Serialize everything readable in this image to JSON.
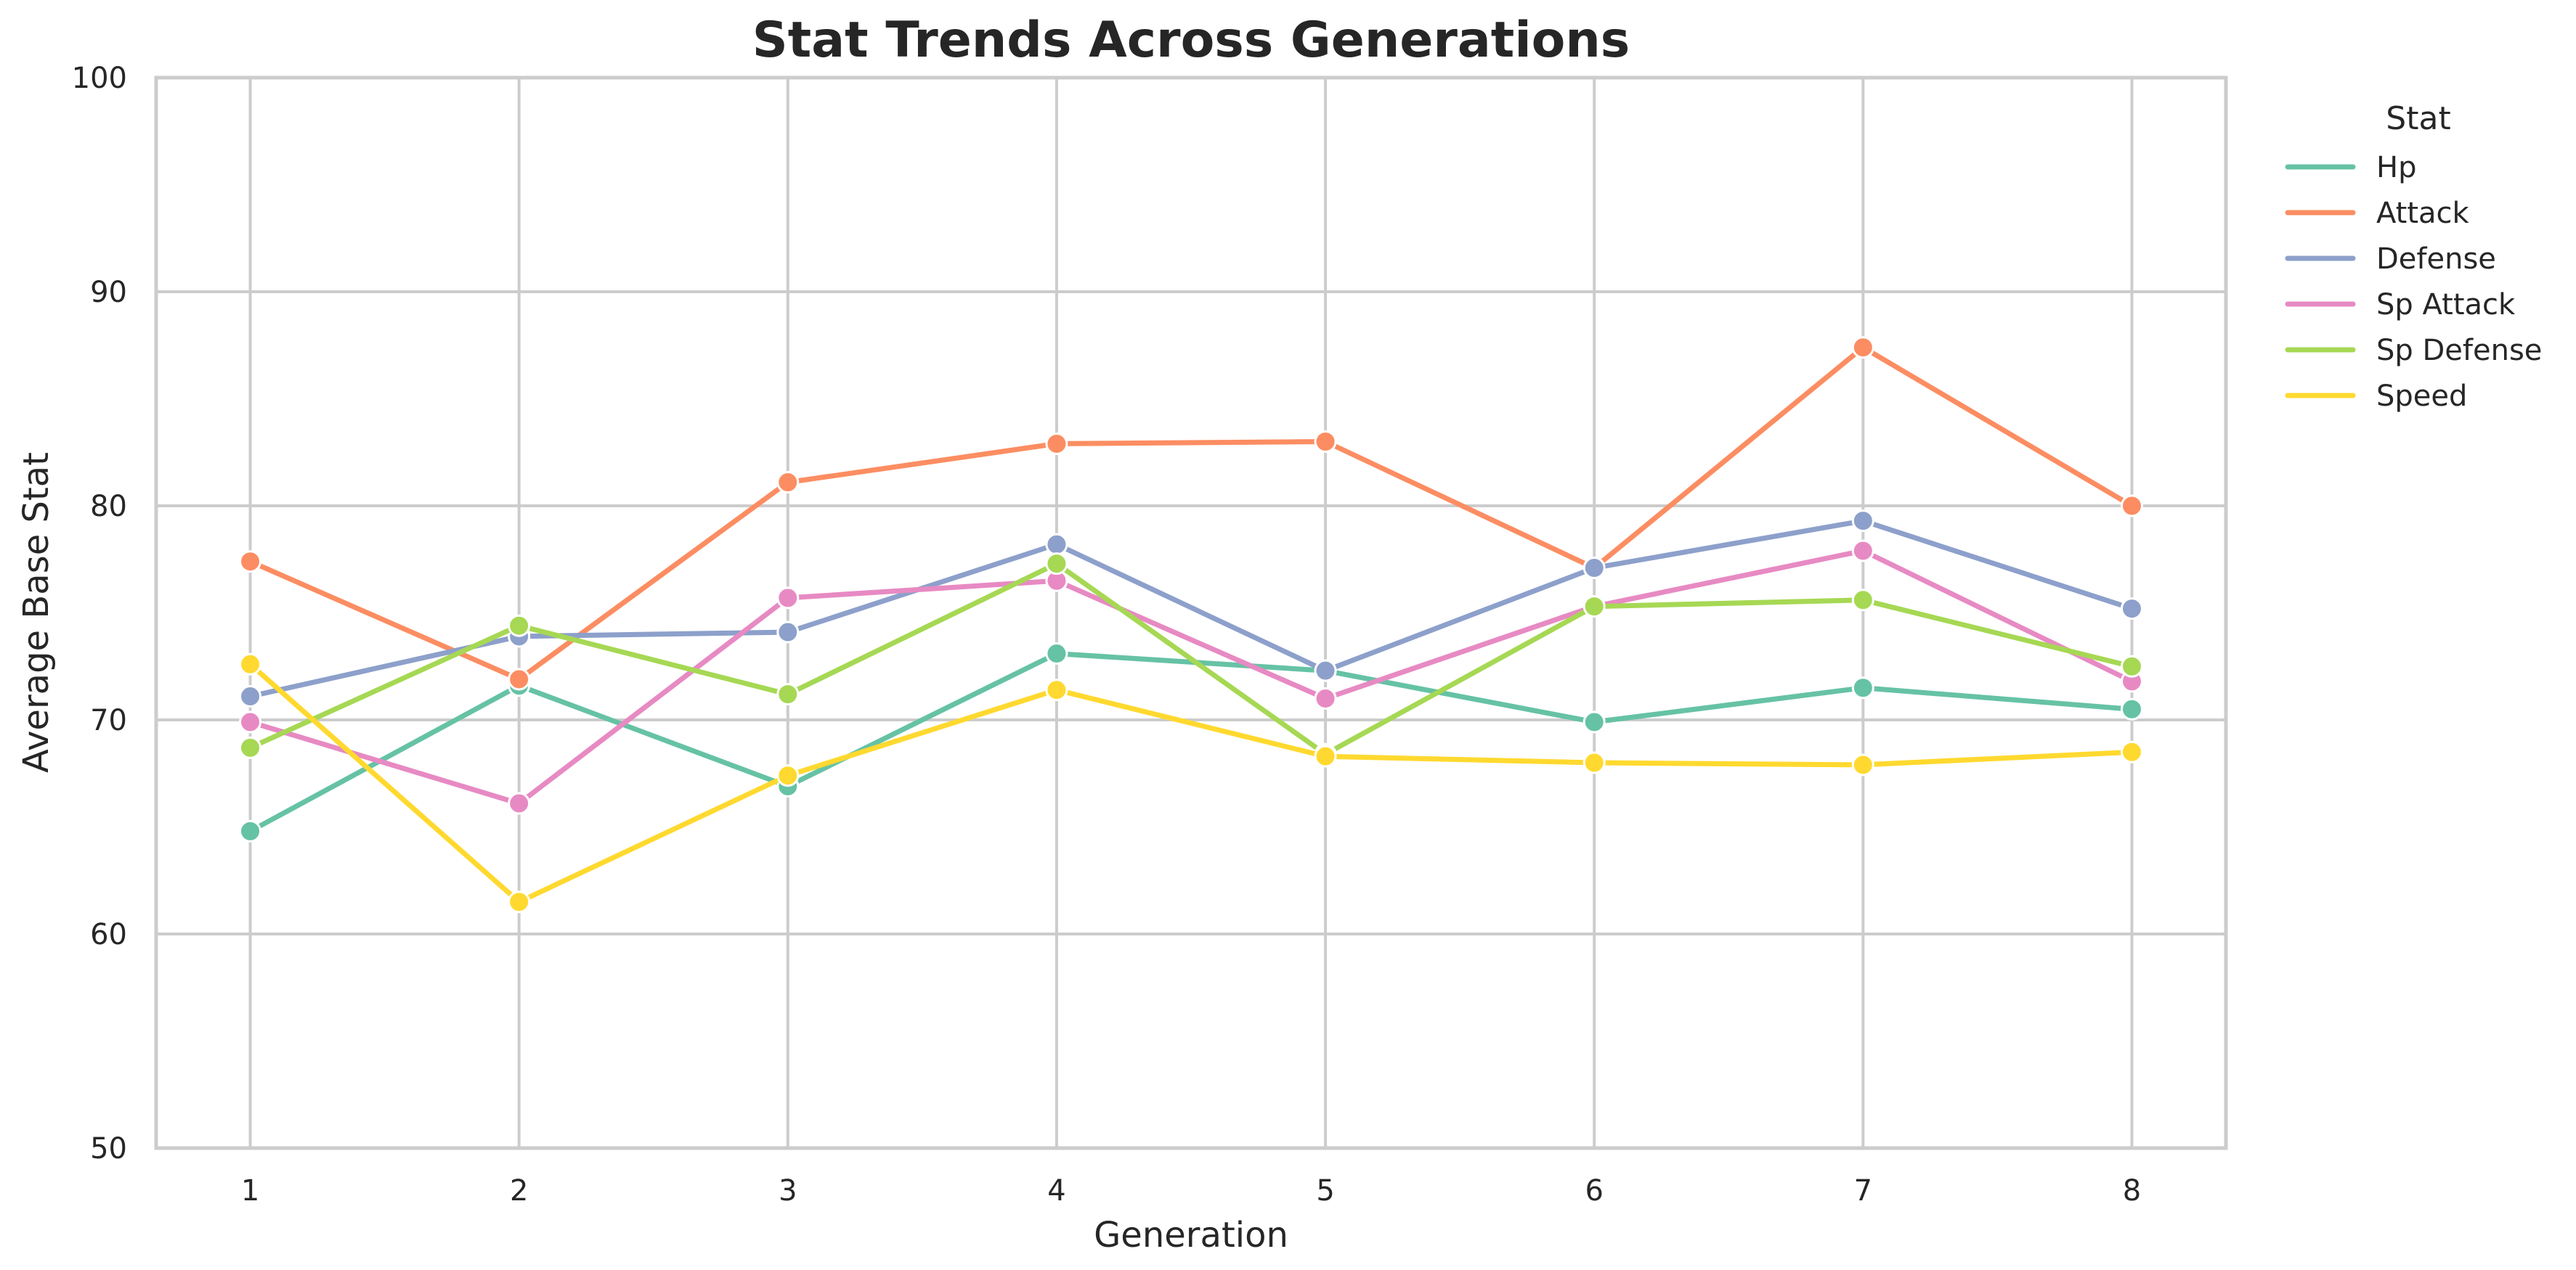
{
  "chart_data": {
    "type": "line",
    "title": "Stat Trends Across Generations",
    "xlabel": "Generation",
    "ylabel": "Average Base Stat",
    "x": [
      1,
      2,
      3,
      4,
      5,
      6,
      7,
      8
    ],
    "x_tick_labels": [
      "1",
      "2",
      "3",
      "4",
      "5",
      "6",
      "7",
      "8"
    ],
    "ylim": [
      50,
      100
    ],
    "y_ticks": [
      50,
      60,
      70,
      80,
      90,
      100
    ],
    "y_tick_labels": [
      "50",
      "60",
      "70",
      "80",
      "90",
      "100"
    ],
    "grid": true,
    "legend": {
      "title": "Stat",
      "placement": "outside-right-top"
    },
    "series": [
      {
        "name": "Hp",
        "color": "#66c2a5",
        "values": [
          64.8,
          71.6,
          66.9,
          73.1,
          72.3,
          69.9,
          71.5,
          70.5
        ]
      },
      {
        "name": "Attack",
        "color": "#fc8d62",
        "values": [
          77.4,
          71.9,
          81.1,
          82.9,
          83.0,
          77.1,
          87.4,
          80.0
        ]
      },
      {
        "name": "Defense",
        "color": "#8da0cb",
        "values": [
          71.1,
          73.9,
          74.1,
          78.2,
          72.3,
          77.1,
          79.3,
          75.2
        ]
      },
      {
        "name": "Sp Attack",
        "color": "#e78ac3",
        "values": [
          69.9,
          66.1,
          75.7,
          76.5,
          71.0,
          75.3,
          77.9,
          71.8
        ]
      },
      {
        "name": "Sp Defense",
        "color": "#a6d854",
        "values": [
          68.7,
          74.4,
          71.2,
          77.3,
          68.4,
          75.3,
          75.6,
          72.5
        ]
      },
      {
        "name": "Speed",
        "color": "#ffd92f",
        "values": [
          72.6,
          61.5,
          67.4,
          71.4,
          68.3,
          68.0,
          67.9,
          68.5
        ]
      }
    ]
  }
}
